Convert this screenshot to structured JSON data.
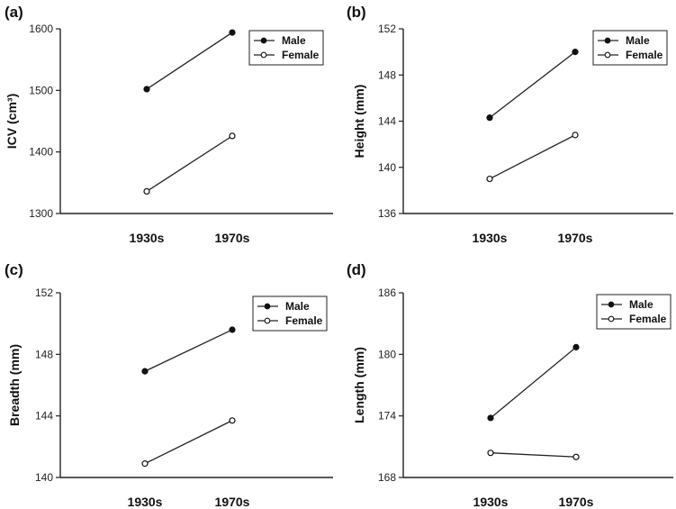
{
  "chart_data": [
    {
      "type": "line",
      "panel_label": "(a)",
      "ylabel": "ICV (cm³)",
      "categories": [
        "1930s",
        "1970s"
      ],
      "ylim": [
        1300,
        1600
      ],
      "yticks": [
        "1300",
        "1400",
        "1500",
        "1600"
      ],
      "series": [
        {
          "name": "Male",
          "marker": "filled",
          "values": [
            1502,
            1594
          ]
        },
        {
          "name": "Female",
          "marker": "open",
          "values": [
            1336,
            1426
          ]
        }
      ],
      "legend_position": "top-right"
    },
    {
      "type": "line",
      "panel_label": "(b)",
      "ylabel": "Height (mm)",
      "categories": [
        "1930s",
        "1970s"
      ],
      "ylim": [
        136,
        152
      ],
      "yticks": [
        "136",
        "140",
        "144",
        "148",
        "152"
      ],
      "series": [
        {
          "name": "Male",
          "marker": "filled",
          "values": [
            144.3,
            150.0
          ]
        },
        {
          "name": "Female",
          "marker": "open",
          "values": [
            139.0,
            142.8
          ]
        }
      ],
      "legend_position": "top-right"
    },
    {
      "type": "line",
      "panel_label": "(c)",
      "ylabel": "Breadth (mm)",
      "categories": [
        "1930s",
        "1970s"
      ],
      "ylim": [
        140,
        152
      ],
      "yticks": [
        "140",
        "144",
        "148",
        "152"
      ],
      "series": [
        {
          "name": "Male",
          "marker": "filled",
          "values": [
            146.9,
            149.6
          ]
        },
        {
          "name": "Female",
          "marker": "open",
          "values": [
            140.9,
            143.7
          ]
        }
      ],
      "legend_position": "top-right"
    },
    {
      "type": "line",
      "panel_label": "(d)",
      "ylabel": "Length (mm)",
      "categories": [
        "1930s",
        "1970s"
      ],
      "ylim": [
        168,
        186
      ],
      "yticks": [
        "168",
        "174",
        "180",
        "186"
      ],
      "series": [
        {
          "name": "Male",
          "marker": "filled",
          "values": [
            173.8,
            180.7
          ]
        },
        {
          "name": "Female",
          "marker": "open",
          "values": [
            170.4,
            170.0
          ]
        }
      ],
      "legend_position": "top-right"
    }
  ]
}
